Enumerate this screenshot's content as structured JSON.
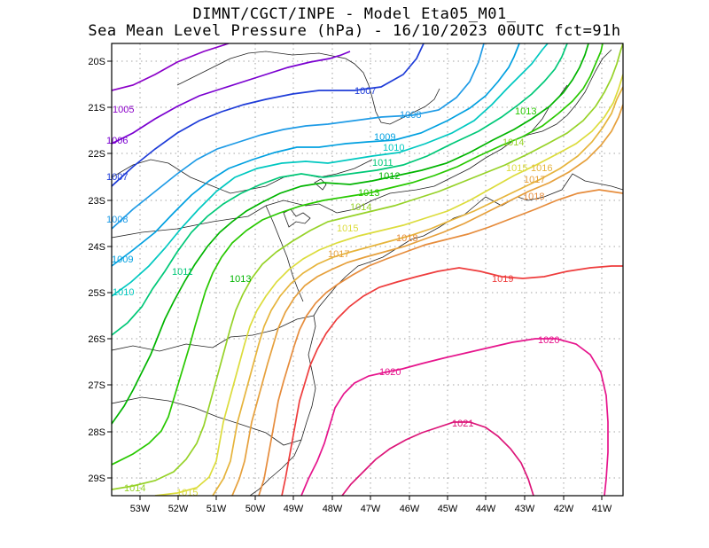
{
  "title": {
    "line1": "DIMNT/CGCT/INPE -  Model Eta05_M01_",
    "line2": "Sea Mean Level Pressure (hPa) - 16/10/2023 00UTC fct=91h"
  },
  "axes": {
    "lon_labels": [
      "53W",
      "52W",
      "51W",
      "50W",
      "49W",
      "48W",
      "47W",
      "46W",
      "45W",
      "44W",
      "43W",
      "42W",
      "41W"
    ],
    "lat_labels": [
      "20S",
      "21S",
      "22S",
      "23S",
      "24S",
      "25S",
      "26S",
      "27S",
      "28S",
      "29S"
    ]
  },
  "contour_labels": {
    "l1005": "1005",
    "l1006": "1006",
    "l1007a": "1007",
    "l1007b": "1007",
    "l1008a": "1008",
    "l1008b": "1008",
    "l1009a": "1009",
    "l1009b": "1009",
    "l1010a": "1010",
    "l1010b": "1010",
    "l1011a": "1011",
    "l1011b": "1011",
    "l1012": "1012",
    "l1013a": "1013",
    "l1013b": "1013",
    "l1013c": "1013",
    "l1014a": "1014",
    "l1014b": "1014",
    "l1014c": "1014",
    "l1015a": "1015",
    "l1015b": "1015",
    "l1015c": "1015",
    "l1016": "1016",
    "l1017a": "1017",
    "l1017b": "1017",
    "l1018a": "1018",
    "l1018b": "1018",
    "l1019": "1019",
    "l1020a": "1020",
    "l1020b": "1020",
    "l1021": "1021"
  },
  "colors": {
    "c1005": "#8b00c8",
    "c1006": "#7a00d0",
    "c1007": "#1e3cd8",
    "c1008": "#1e9be6",
    "c1009": "#00a0e0",
    "c1010": "#00c8c0",
    "c1011": "#00c878",
    "c1012": "#00b400",
    "c1013": "#28c800",
    "c1014": "#96d228",
    "c1015": "#dcdc3c",
    "c1016": "#e6b43c",
    "c1017": "#e6a03c",
    "c1018": "#e68c3c",
    "c1019": "#ee3c3c",
    "c1020": "#e6148c",
    "c1021": "#dc1478"
  }
}
